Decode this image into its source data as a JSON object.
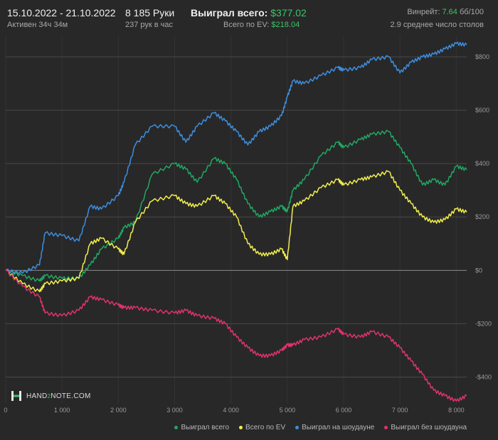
{
  "header": {
    "date_range": "15.10.2022 - 21.10.2022",
    "active": "Активен 34ч 34м",
    "hands": "8 185 Руки",
    "hands_per_hour": "237 рук в час",
    "won_total_label": "Выиграл всего:",
    "won_total_value": "$377.02",
    "ev_label": "Всего по EV:",
    "ev_value": "$218.04",
    "winrate_label": "Винрейт:",
    "winrate_value": "7.64",
    "winrate_unit": "бб/100",
    "tables": "2.9 среднее число столов"
  },
  "logo": {
    "text_a": "HAND",
    "text_b": "2",
    "text_c": "NOTE.COM"
  },
  "colors": {
    "won_total": "#1fa862",
    "ev": "#f2ee4e",
    "showdown": "#3d8ee0",
    "non_showdown": "#e0336b",
    "background": "#282828",
    "accent": "#3ec36b"
  },
  "legend": [
    {
      "label": "Выиграл всего",
      "color": "#1fa862"
    },
    {
      "label": "Всего по EV",
      "color": "#f2ee4e"
    },
    {
      "label": "Выиграл на шоудауне",
      "color": "#3d8ee0"
    },
    {
      "label": "Выиграл без шоудауна",
      "color": "#e0336b"
    }
  ],
  "chart_data": {
    "type": "line",
    "xlim": [
      0,
      8185
    ],
    "ylim": [
      -500,
      880
    ],
    "x_ticks": [
      {
        "value": 0,
        "label": "0"
      },
      {
        "value": 1000,
        "label": "1 000"
      },
      {
        "value": 2000,
        "label": "2 000"
      },
      {
        "value": 3000,
        "label": "3 000"
      },
      {
        "value": 4000,
        "label": "4 000"
      },
      {
        "value": 5000,
        "label": "5 000"
      },
      {
        "value": 6000,
        "label": "6 000"
      },
      {
        "value": 7000,
        "label": "7 000"
      },
      {
        "value": 8000,
        "label": "8 000"
      }
    ],
    "y_ticks": [
      {
        "value": 800,
        "label": "$800"
      },
      {
        "value": 600,
        "label": "$600"
      },
      {
        "value": 400,
        "label": "$400"
      },
      {
        "value": 200,
        "label": "$200"
      },
      {
        "value": 0,
        "label": "$0"
      },
      {
        "value": -200,
        "label": "-$200"
      },
      {
        "value": -400,
        "label": "-$400"
      }
    ],
    "grid": true,
    "legend_position": "bottom-right",
    "series": [
      {
        "name": "Выиграл всего",
        "color": "#1fa862",
        "points": [
          [
            0,
            0
          ],
          [
            300,
            -20
          ],
          [
            600,
            -40
          ],
          [
            700,
            -20
          ],
          [
            1000,
            -30
          ],
          [
            1300,
            -30
          ],
          [
            1500,
            20
          ],
          [
            1700,
            80
          ],
          [
            2000,
            120
          ],
          [
            2100,
            160
          ],
          [
            2300,
            180
          ],
          [
            2600,
            360
          ],
          [
            3000,
            400
          ],
          [
            3200,
            380
          ],
          [
            3400,
            330
          ],
          [
            3700,
            420
          ],
          [
            3900,
            400
          ],
          [
            4100,
            340
          ],
          [
            4300,
            250
          ],
          [
            4500,
            200
          ],
          [
            4700,
            220
          ],
          [
            4900,
            240
          ],
          [
            5000,
            220
          ],
          [
            5100,
            300
          ],
          [
            5300,
            340
          ],
          [
            5600,
            430
          ],
          [
            5900,
            480
          ],
          [
            6000,
            460
          ],
          [
            6300,
            490
          ],
          [
            6500,
            510
          ],
          [
            6800,
            520
          ],
          [
            7000,
            460
          ],
          [
            7200,
            400
          ],
          [
            7400,
            320
          ],
          [
            7600,
            340
          ],
          [
            7800,
            320
          ],
          [
            8000,
            390
          ],
          [
            8185,
            377
          ]
        ]
      },
      {
        "name": "Всего по EV",
        "color": "#f2ee4e",
        "points": [
          [
            0,
            0
          ],
          [
            300,
            -50
          ],
          [
            600,
            -80
          ],
          [
            700,
            -50
          ],
          [
            1000,
            -40
          ],
          [
            1300,
            -30
          ],
          [
            1500,
            100
          ],
          [
            1700,
            120
          ],
          [
            2000,
            80
          ],
          [
            2100,
            60
          ],
          [
            2300,
            180
          ],
          [
            2600,
            260
          ],
          [
            3000,
            280
          ],
          [
            3200,
            250
          ],
          [
            3400,
            240
          ],
          [
            3700,
            280
          ],
          [
            3900,
            250
          ],
          [
            4100,
            200
          ],
          [
            4300,
            100
          ],
          [
            4500,
            60
          ],
          [
            4700,
            60
          ],
          [
            4900,
            80
          ],
          [
            5000,
            40
          ],
          [
            5100,
            240
          ],
          [
            5300,
            260
          ],
          [
            5600,
            310
          ],
          [
            5900,
            340
          ],
          [
            6000,
            320
          ],
          [
            6300,
            340
          ],
          [
            6500,
            350
          ],
          [
            6800,
            370
          ],
          [
            7000,
            300
          ],
          [
            7200,
            250
          ],
          [
            7400,
            200
          ],
          [
            7600,
            180
          ],
          [
            7800,
            190
          ],
          [
            8000,
            230
          ],
          [
            8185,
            218
          ]
        ]
      },
      {
        "name": "Выиграл на шоудауне",
        "color": "#3d8ee0",
        "points": [
          [
            0,
            0
          ],
          [
            300,
            -10
          ],
          [
            600,
            20
          ],
          [
            700,
            140
          ],
          [
            1000,
            130
          ],
          [
            1300,
            110
          ],
          [
            1500,
            240
          ],
          [
            1700,
            230
          ],
          [
            2000,
            280
          ],
          [
            2100,
            330
          ],
          [
            2300,
            470
          ],
          [
            2600,
            540
          ],
          [
            3000,
            540
          ],
          [
            3200,
            480
          ],
          [
            3400,
            540
          ],
          [
            3700,
            590
          ],
          [
            3900,
            560
          ],
          [
            4100,
            520
          ],
          [
            4300,
            470
          ],
          [
            4500,
            520
          ],
          [
            4700,
            540
          ],
          [
            4900,
            580
          ],
          [
            5000,
            650
          ],
          [
            5100,
            710
          ],
          [
            5300,
            700
          ],
          [
            5600,
            730
          ],
          [
            5900,
            760
          ],
          [
            6000,
            750
          ],
          [
            6300,
            760
          ],
          [
            6500,
            790
          ],
          [
            6800,
            800
          ],
          [
            7000,
            740
          ],
          [
            7200,
            780
          ],
          [
            7400,
            800
          ],
          [
            7600,
            810
          ],
          [
            7800,
            830
          ],
          [
            8000,
            850
          ],
          [
            8185,
            845
          ]
        ]
      },
      {
        "name": "Выиграл без шоудауна",
        "color": "#e0336b",
        "points": [
          [
            0,
            0
          ],
          [
            300,
            -60
          ],
          [
            600,
            -100
          ],
          [
            700,
            -160
          ],
          [
            1000,
            -170
          ],
          [
            1300,
            -150
          ],
          [
            1500,
            -100
          ],
          [
            1700,
            -110
          ],
          [
            2000,
            -130
          ],
          [
            2100,
            -140
          ],
          [
            2300,
            -140
          ],
          [
            2600,
            -150
          ],
          [
            3000,
            -160
          ],
          [
            3200,
            -150
          ],
          [
            3400,
            -170
          ],
          [
            3700,
            -180
          ],
          [
            3900,
            -200
          ],
          [
            4100,
            -250
          ],
          [
            4300,
            -290
          ],
          [
            4500,
            -320
          ],
          [
            4700,
            -320
          ],
          [
            4900,
            -300
          ],
          [
            5000,
            -280
          ],
          [
            5100,
            -280
          ],
          [
            5300,
            -260
          ],
          [
            5600,
            -250
          ],
          [
            5900,
            -220
          ],
          [
            6000,
            -240
          ],
          [
            6300,
            -250
          ],
          [
            6500,
            -230
          ],
          [
            6800,
            -250
          ],
          [
            7000,
            -290
          ],
          [
            7200,
            -340
          ],
          [
            7400,
            -390
          ],
          [
            7600,
            -450
          ],
          [
            7800,
            -470
          ],
          [
            8000,
            -490
          ],
          [
            8185,
            -470
          ]
        ]
      }
    ]
  }
}
